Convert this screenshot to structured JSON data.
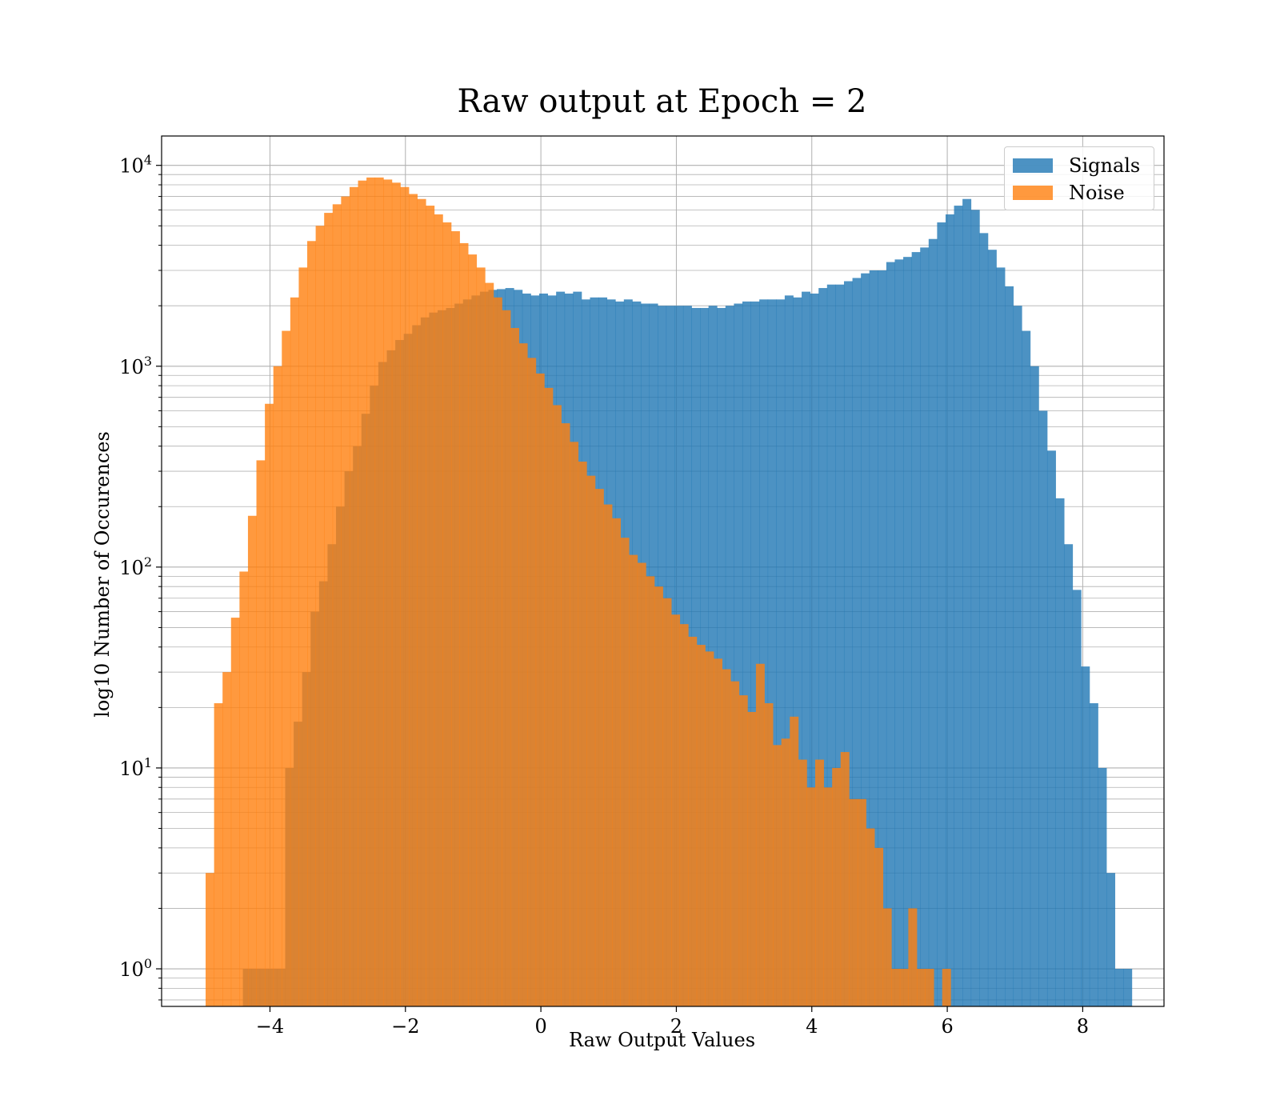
{
  "chart_data": {
    "type": "histogram",
    "title": "Raw output at Epoch = 2",
    "xlabel": "Raw Output Values",
    "ylabel": "log10 Number of Occurences",
    "xlim": [
      -5.6,
      9.2
    ],
    "ylim": [
      0.65,
      14000
    ],
    "yscale": "log",
    "grid": true,
    "legend_position": "upper right",
    "x_ticks": [
      -4,
      -2,
      0,
      2,
      4,
      6,
      8
    ],
    "x_tick_labels": [
      "−4",
      "−2",
      "0",
      "2",
      "4",
      "6",
      "8"
    ],
    "y_ticks": [
      {
        "base": "10",
        "exp": "0",
        "value": 1
      },
      {
        "base": "10",
        "exp": "1",
        "value": 10
      },
      {
        "base": "10",
        "exp": "2",
        "value": 100
      },
      {
        "base": "10",
        "exp": "3",
        "value": 1000
      },
      {
        "base": "10",
        "exp": "4",
        "value": 10000
      }
    ],
    "series": [
      {
        "name": "Signals",
        "color": "#1f77b4",
        "opacity": 0.8,
        "bin_start": -4.4,
        "bin_width": 0.125,
        "counts": [
          1,
          1,
          1,
          1,
          1,
          10,
          17,
          30,
          60,
          85,
          130,
          200,
          300,
          400,
          580,
          800,
          1050,
          1200,
          1350,
          1450,
          1600,
          1750,
          1850,
          1900,
          1950,
          2050,
          2150,
          2250,
          2350,
          2400,
          2420,
          2450,
          2400,
          2300,
          2250,
          2300,
          2250,
          2350,
          2300,
          2350,
          2150,
          2200,
          2200,
          2150,
          2100,
          2150,
          2100,
          2050,
          2050,
          2000,
          2000,
          2000,
          2000,
          1950,
          1950,
          2000,
          1950,
          2000,
          2050,
          2100,
          2100,
          2150,
          2150,
          2150,
          2250,
          2200,
          2350,
          2300,
          2450,
          2550,
          2550,
          2650,
          2750,
          2900,
          3000,
          3000,
          3300,
          3400,
          3500,
          3700,
          3900,
          4300,
          5200,
          5700,
          6300,
          6800,
          6000,
          4600,
          3800,
          3100,
          2500,
          2000,
          1500,
          1000,
          600,
          380,
          220,
          130,
          77,
          32,
          21,
          10,
          3,
          1,
          1
        ]
      },
      {
        "name": "Noise",
        "color": "#ff7f0e",
        "opacity": 0.8,
        "bin_start": -4.95,
        "bin_width": 0.125,
        "counts": [
          3,
          21,
          30,
          56,
          95,
          180,
          340,
          650,
          1000,
          1500,
          2200,
          3100,
          4200,
          5000,
          5800,
          6400,
          7000,
          7800,
          8400,
          8700,
          8700,
          8500,
          8200,
          7800,
          7200,
          6800,
          6300,
          5700,
          5200,
          4700,
          4100,
          3600,
          3100,
          2600,
          2200,
          1900,
          1550,
          1300,
          1100,
          920,
          780,
          640,
          520,
          420,
          335,
          285,
          245,
          205,
          175,
          140,
          115,
          105,
          90,
          80,
          70,
          58,
          52,
          45,
          41,
          38,
          35,
          31,
          27,
          23,
          19,
          33,
          21,
          13,
          14,
          18,
          11,
          8,
          11,
          8,
          10,
          12,
          7,
          7,
          5,
          4,
          2,
          1,
          1,
          2,
          1,
          1,
          0,
          1
        ]
      }
    ]
  }
}
